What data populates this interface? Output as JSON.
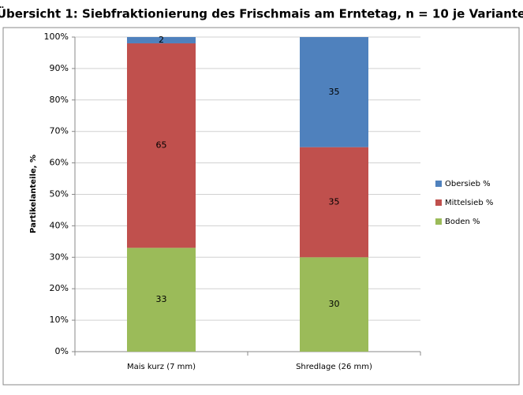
{
  "chart_data": {
    "type": "stacked_bar",
    "title": "Übersicht 1: Siebfraktionierung des Frischmais am Erntetag, n = 10 je Variante",
    "y_label": "Partikelanteile, %",
    "categories": [
      "Mais kurz (7 mm)",
      "Shredlage (26 mm)"
    ],
    "series": [
      {
        "name": "Boden %",
        "color": "#9bbb59",
        "values": [
          33,
          30
        ]
      },
      {
        "name": "Mittelsieb %",
        "color": "#c0504d",
        "values": [
          65,
          35
        ]
      },
      {
        "name": "Obersieb %",
        "color": "#4f81bd",
        "values": [
          2,
          35
        ]
      }
    ],
    "ylim": [
      0,
      100
    ],
    "yticks": [
      {
        "value": 0,
        "label": "0%"
      },
      {
        "value": 10,
        "label": "10%"
      },
      {
        "value": 20,
        "label": "20%"
      },
      {
        "value": 30,
        "label": "30%"
      },
      {
        "value": 40,
        "label": "40%"
      },
      {
        "value": 50,
        "label": "50%"
      },
      {
        "value": 60,
        "label": "60%"
      },
      {
        "value": 70,
        "label": "70%"
      },
      {
        "value": 80,
        "label": "80%"
      },
      {
        "value": 90,
        "label": "90%"
      },
      {
        "value": 100,
        "label": "100%"
      }
    ],
    "grid": true,
    "legend": "right"
  }
}
